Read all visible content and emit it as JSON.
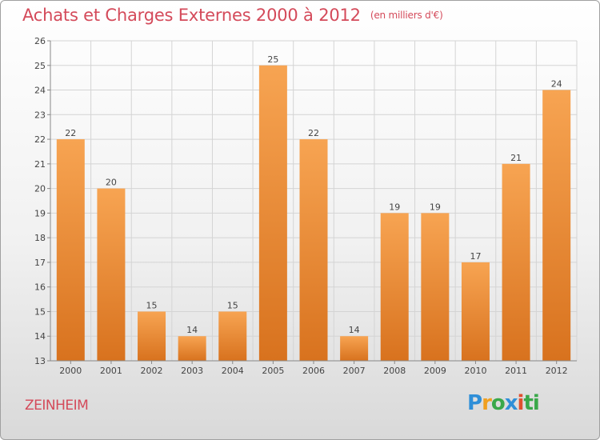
{
  "title": "Achats et Charges Externes 2000 à 2012",
  "unit": "(en milliers d'€)",
  "commune": "ZEINHEIM",
  "logo": {
    "letters": [
      "P",
      "r",
      "o",
      "x",
      "i",
      "ti"
    ],
    "colors": [
      "#2f8fd8",
      "#f0a020",
      "#3aa84a",
      "#2f8fd8",
      "#e05030",
      "#3aa84a"
    ]
  },
  "chart_data": {
    "type": "bar",
    "categories": [
      "2000",
      "2001",
      "2002",
      "2003",
      "2004",
      "2005",
      "2006",
      "2007",
      "2008",
      "2009",
      "2010",
      "2011",
      "2012"
    ],
    "values": [
      22,
      20,
      15,
      14,
      15,
      25,
      22,
      14,
      19,
      19,
      17,
      21,
      24
    ],
    "yticks": [
      13,
      14,
      15,
      16,
      17,
      18,
      19,
      20,
      21,
      22,
      23,
      24,
      25,
      26
    ],
    "ylim": [
      13,
      26
    ],
    "grid": true,
    "bar_color_top": "#f7a452",
    "bar_color_bottom": "#d8721e"
  }
}
